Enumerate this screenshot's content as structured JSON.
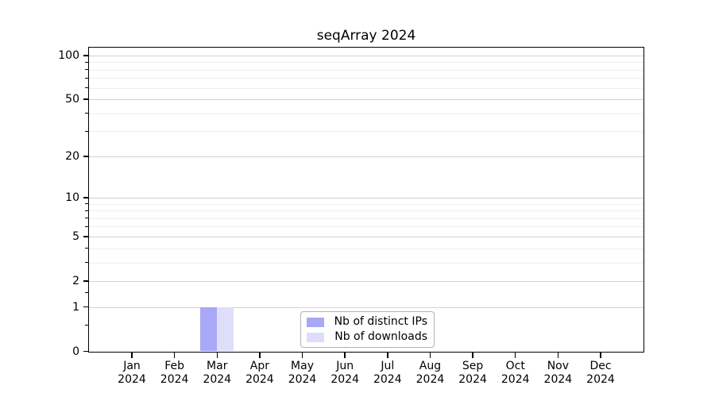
{
  "colors": {
    "background": "#ffffff",
    "axis": "#000000",
    "grid_major": "#d2d2d2",
    "grid_minor": "#efefef",
    "legend_border": "#b3b3b3",
    "text": "#000000"
  },
  "legend": {
    "items": [
      {
        "label": "Nb of distinct IPs"
      },
      {
        "label": "Nb of downloads"
      }
    ]
  },
  "chart_data": {
    "type": "bar",
    "title": "seqArray 2024",
    "categories": [
      "Jan",
      "Feb",
      "Mar",
      "Apr",
      "May",
      "Jun",
      "Jul",
      "Aug",
      "Sep",
      "Oct",
      "Nov",
      "Dec"
    ],
    "xtick_year": "2024",
    "series": [
      {
        "name": "Nb of distinct IPs",
        "color": "#a8a8f6",
        "values": [
          0,
          0,
          1,
          0,
          0,
          0,
          0,
          0,
          0,
          0,
          0,
          0
        ]
      },
      {
        "name": "Nb of downloads",
        "color": "#dedefa",
        "values": [
          0,
          0,
          1,
          0,
          0,
          0,
          0,
          0,
          0,
          0,
          0,
          0
        ]
      }
    ],
    "yscale": "log1p",
    "ylim": [
      0,
      114
    ],
    "yticks": [
      0,
      1,
      2,
      5,
      10,
      20,
      50,
      100
    ],
    "yticks_minor": [
      0.5,
      1.5,
      3,
      4,
      6,
      7,
      8,
      9,
      30,
      40,
      60,
      70,
      80,
      90
    ],
    "ygridlines_minor": [
      3,
      4,
      6,
      7,
      8,
      9,
      30,
      40,
      60,
      70,
      80,
      90
    ],
    "grid": true,
    "legend_position": "lower center inside",
    "xlabel": "",
    "ylabel": ""
  }
}
